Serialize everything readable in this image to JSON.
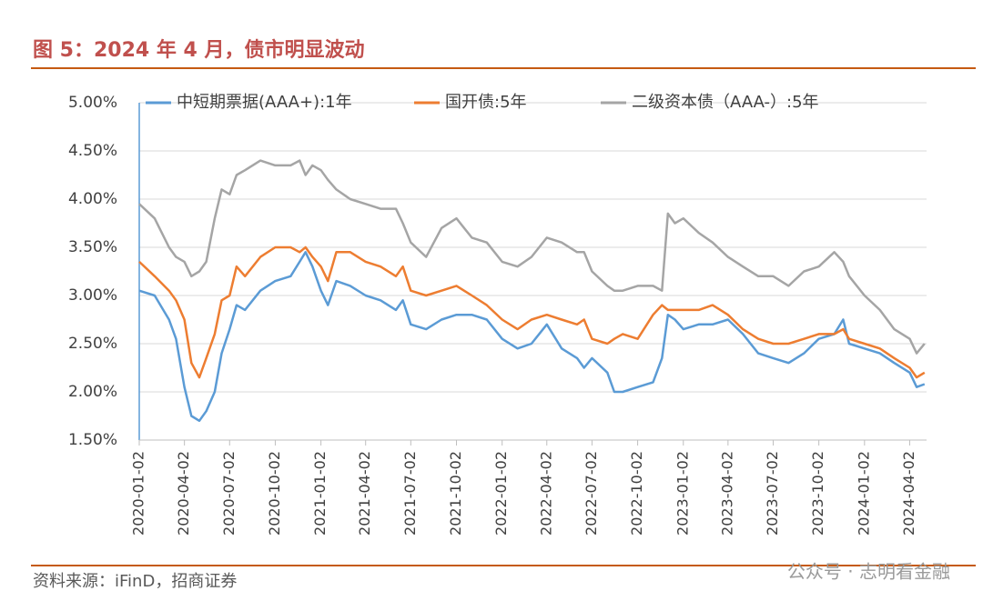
{
  "title": "图 5：2024 年 4 月，债市明显波动",
  "source": "资料来源：iFinD，招商证券",
  "watermark": "公众号 · 志明看金融",
  "chart_data": {
    "type": "line",
    "x": [
      "2020-01-02",
      "2020-02-02",
      "2020-03-02",
      "2020-03-16",
      "2020-04-02",
      "2020-04-16",
      "2020-05-02",
      "2020-05-16",
      "2020-06-02",
      "2020-06-16",
      "2020-07-02",
      "2020-07-16",
      "2020-08-02",
      "2020-09-02",
      "2020-10-02",
      "2020-11-02",
      "2020-11-20",
      "2020-12-02",
      "2020-12-16",
      "2021-01-02",
      "2021-01-16",
      "2021-02-02",
      "2021-03-02",
      "2021-04-02",
      "2021-05-02",
      "2021-06-02",
      "2021-06-16",
      "2021-07-02",
      "2021-08-02",
      "2021-09-02",
      "2021-10-02",
      "2021-11-02",
      "2021-12-02",
      "2022-01-02",
      "2022-02-02",
      "2022-03-02",
      "2022-04-02",
      "2022-05-02",
      "2022-06-02",
      "2022-06-16",
      "2022-07-02",
      "2022-08-02",
      "2022-08-16",
      "2022-09-02",
      "2022-10-02",
      "2022-11-02",
      "2022-11-20",
      "2022-12-02",
      "2022-12-16",
      "2023-01-02",
      "2023-02-02",
      "2023-03-02",
      "2023-04-02",
      "2023-05-02",
      "2023-06-02",
      "2023-07-02",
      "2023-08-02",
      "2023-09-02",
      "2023-10-02",
      "2023-11-02",
      "2023-11-20",
      "2023-12-02",
      "2024-01-02",
      "2024-02-02",
      "2024-03-02",
      "2024-04-02",
      "2024-04-16",
      "2024-05-02"
    ],
    "series": [
      {
        "name": "中短期票据(AAA+):1年",
        "color": "#5b9bd5",
        "values": [
          3.05,
          3.0,
          2.75,
          2.55,
          2.05,
          1.75,
          1.7,
          1.8,
          2.0,
          2.4,
          2.65,
          2.9,
          2.85,
          3.05,
          3.15,
          3.2,
          3.35,
          3.45,
          3.3,
          3.05,
          2.9,
          3.15,
          3.1,
          3.0,
          2.95,
          2.85,
          2.95,
          2.7,
          2.65,
          2.75,
          2.8,
          2.8,
          2.75,
          2.55,
          2.45,
          2.5,
          2.7,
          2.45,
          2.35,
          2.25,
          2.35,
          2.2,
          2.0,
          2.0,
          2.05,
          2.1,
          2.35,
          2.8,
          2.75,
          2.65,
          2.7,
          2.7,
          2.75,
          2.6,
          2.4,
          2.35,
          2.3,
          2.4,
          2.55,
          2.6,
          2.75,
          2.5,
          2.45,
          2.4,
          2.3,
          2.2,
          2.05,
          2.08
        ]
      },
      {
        "name": "国开债:5年",
        "color": "#ed7d31",
        "values": [
          3.35,
          3.2,
          3.05,
          2.95,
          2.75,
          2.3,
          2.15,
          2.35,
          2.6,
          2.95,
          3.0,
          3.3,
          3.2,
          3.4,
          3.5,
          3.5,
          3.45,
          3.5,
          3.4,
          3.3,
          3.15,
          3.45,
          3.45,
          3.35,
          3.3,
          3.2,
          3.3,
          3.05,
          3.0,
          3.05,
          3.1,
          3.0,
          2.9,
          2.75,
          2.65,
          2.75,
          2.8,
          2.75,
          2.7,
          2.75,
          2.55,
          2.5,
          2.55,
          2.6,
          2.55,
          2.8,
          2.9,
          2.85,
          2.85,
          2.85,
          2.85,
          2.9,
          2.8,
          2.65,
          2.55,
          2.5,
          2.5,
          2.55,
          2.6,
          2.6,
          2.65,
          2.55,
          2.5,
          2.45,
          2.35,
          2.25,
          2.15,
          2.2
        ]
      },
      {
        "name": "二级资本债（AAA-）:5年",
        "color": "#a5a5a5",
        "values": [
          3.95,
          3.8,
          3.5,
          3.4,
          3.35,
          3.2,
          3.25,
          3.35,
          3.8,
          4.1,
          4.05,
          4.25,
          4.3,
          4.4,
          4.35,
          4.35,
          4.4,
          4.25,
          4.35,
          4.3,
          4.2,
          4.1,
          4.0,
          3.95,
          3.9,
          3.9,
          3.75,
          3.55,
          3.4,
          3.7,
          3.8,
          3.6,
          3.55,
          3.35,
          3.3,
          3.4,
          3.6,
          3.55,
          3.45,
          3.45,
          3.25,
          3.1,
          3.05,
          3.05,
          3.1,
          3.1,
          3.05,
          3.85,
          3.75,
          3.8,
          3.65,
          3.55,
          3.4,
          3.3,
          3.2,
          3.2,
          3.1,
          3.25,
          3.3,
          3.45,
          3.35,
          3.2,
          3.0,
          2.85,
          2.65,
          2.55,
          2.4,
          2.5
        ]
      }
    ],
    "xlim": [
      "2020-01-02",
      "2024-05-06"
    ],
    "xticks": [
      "2020-01-02",
      "2020-04-02",
      "2020-07-02",
      "2020-10-02",
      "2021-01-02",
      "2021-04-02",
      "2021-07-02",
      "2021-10-02",
      "2022-01-02",
      "2022-04-02",
      "2022-07-02",
      "2022-10-02",
      "2023-01-02",
      "2023-04-02",
      "2023-07-02",
      "2023-10-02",
      "2024-01-02",
      "2024-04-02"
    ],
    "ylim": [
      1.5,
      5
    ],
    "yticks": [
      {
        "value": 1.5,
        "label": "1.50%"
      },
      {
        "value": 2,
        "label": "2.00%"
      },
      {
        "value": 2.5,
        "label": "2.50%"
      },
      {
        "value": 3,
        "label": "3.00%"
      },
      {
        "value": 3.5,
        "label": "3.50%"
      },
      {
        "value": 4,
        "label": "4.00%"
      },
      {
        "value": 4.5,
        "label": "4.50%"
      },
      {
        "value": 5,
        "label": "5.00%"
      }
    ],
    "grid": true
  }
}
